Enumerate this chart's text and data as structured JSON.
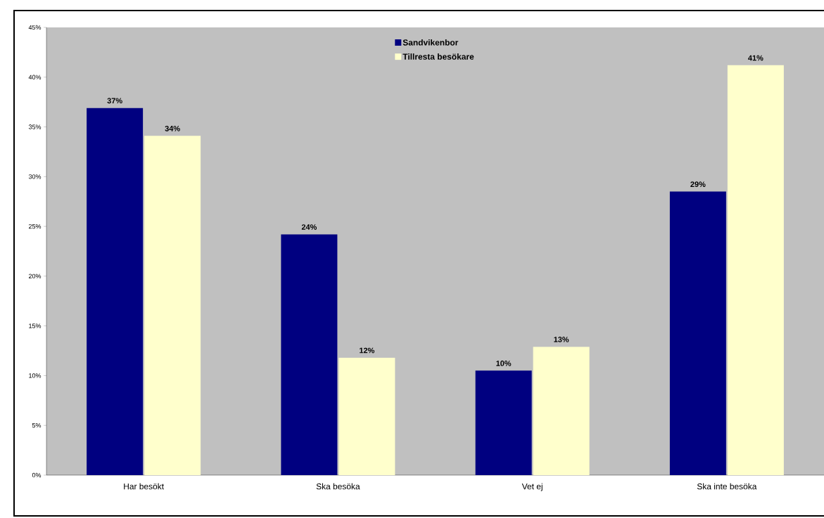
{
  "chart_data": {
    "type": "bar",
    "categories": [
      "Har besökt",
      "Ska besöka",
      "Vet ej",
      "Ska inte besöka"
    ],
    "series": [
      {
        "name": "Sandvikenbor",
        "color": "#000080",
        "values": [
          36.9,
          24.2,
          10.5,
          28.5
        ],
        "value_labels": [
          "37%",
          "24%",
          "10%",
          "29%"
        ]
      },
      {
        "name": "Tillresta besökare",
        "color": "#ffffcc",
        "values": [
          34.1,
          11.8,
          12.9,
          41.2
        ],
        "value_labels": [
          "34%",
          "12%",
          "13%",
          "41%"
        ]
      }
    ],
    "ylim": [
      0,
      45
    ],
    "yticks": [
      {
        "value": 0,
        "label": "0%"
      },
      {
        "value": 5,
        "label": "5%"
      },
      {
        "value": 10,
        "label": "10%"
      },
      {
        "value": 15,
        "label": "15%"
      },
      {
        "value": 20,
        "label": "20%"
      },
      {
        "value": 25,
        "label": "25%"
      },
      {
        "value": 30,
        "label": "30%"
      },
      {
        "value": 35,
        "label": "35%"
      },
      {
        "value": 40,
        "label": "40%"
      },
      {
        "value": 45,
        "label": "45%"
      }
    ],
    "grid": false,
    "legend": "top"
  }
}
